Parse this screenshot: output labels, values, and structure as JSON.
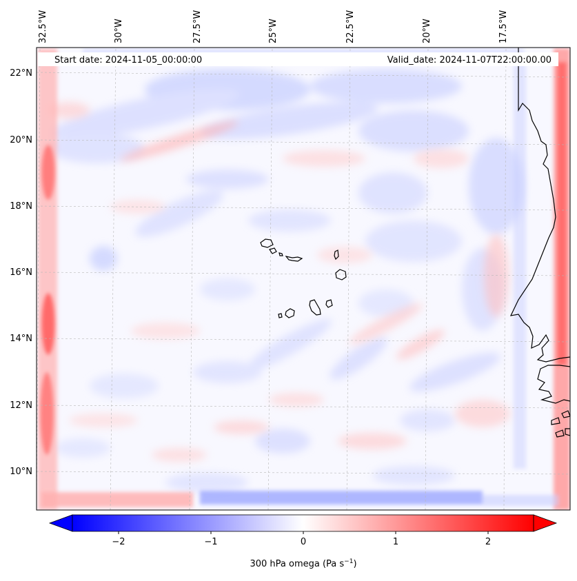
{
  "header": {
    "start_date": "Start date: 2024-11-05_00:00:00",
    "valid_date": "Valid_date: 2024-11-07T22:00:00.00"
  },
  "lon_labels": [
    "32.5°W",
    "30°W",
    "27.5°W",
    "25°W",
    "22.5°W",
    "20°W",
    "17.5°W"
  ],
  "lat_labels": [
    "22°N",
    "20°N",
    "18°N",
    "16°N",
    "14°N",
    "12°N",
    "10°N"
  ],
  "colorbar": {
    "label_prefix": "300 hPa omega (Pa s",
    "label_exp": "−1",
    "label_suffix": ")",
    "range": [
      -2.5,
      2.5
    ],
    "ticks": [
      "−2",
      "−1",
      "0",
      "1",
      "2"
    ],
    "tick_values": [
      -2,
      -1,
      0,
      1,
      2
    ],
    "colors": {
      "low": "#0000ff",
      "mid": "#ffffff",
      "high": "#ff0000"
    },
    "extend": "both"
  },
  "map": {
    "features": [
      "coastline",
      "gridlines"
    ],
    "colormap": "bwr",
    "gridline_color": "#b8b8b8"
  }
}
